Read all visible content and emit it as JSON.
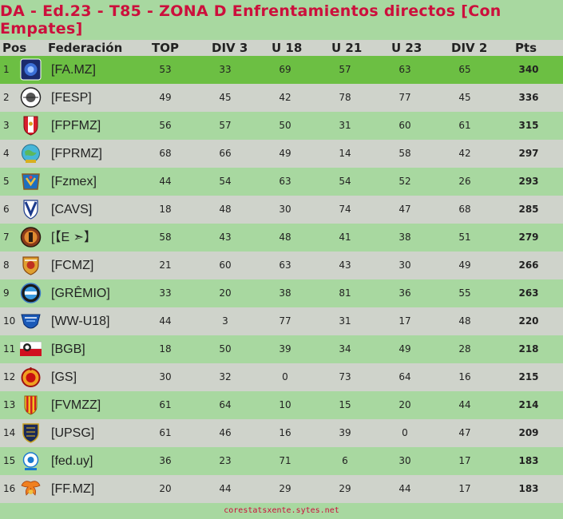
{
  "title": "DA - Ed.23 - T85 - ZONA D Enfrentamientos directos [Con Empates]",
  "headers": {
    "pos": "Pos",
    "federacion": "Federación",
    "top": "TOP",
    "div3": "DIV 3",
    "u18": "U 18",
    "u21": "U 21",
    "u23": "U 23",
    "div2": "DIV 2",
    "pts": "Pts"
  },
  "rows": [
    {
      "pos": "1",
      "fed": "[FA.MZ]",
      "top": "53",
      "div3": "33",
      "u18": "69",
      "u21": "57",
      "u23": "63",
      "div2": "65",
      "pts": "340",
      "logo": "fa-mz-crest"
    },
    {
      "pos": "2",
      "fed": "[FESP]",
      "top": "49",
      "div3": "45",
      "u18": "42",
      "u21": "78",
      "u23": "77",
      "div2": "45",
      "pts": "336",
      "logo": "fesp-crest"
    },
    {
      "pos": "3",
      "fed": "[FPFMZ]",
      "top": "56",
      "div3": "57",
      "u18": "50",
      "u21": "31",
      "u23": "60",
      "div2": "61",
      "pts": "315",
      "logo": "fpfmz-shield"
    },
    {
      "pos": "4",
      "fed": "[FPRMZ]",
      "top": "68",
      "div3": "66",
      "u18": "49",
      "u21": "14",
      "u23": "58",
      "div2": "42",
      "pts": "297",
      "logo": "fprmz-globe"
    },
    {
      "pos": "5",
      "fed": "[Fzmex]",
      "top": "44",
      "div3": "54",
      "u18": "63",
      "u21": "54",
      "u23": "52",
      "div2": "26",
      "pts": "293",
      "logo": "fzmex-badge"
    },
    {
      "pos": "6",
      "fed": "[CAVS]",
      "top": "18",
      "div3": "48",
      "u18": "30",
      "u21": "74",
      "u23": "47",
      "div2": "68",
      "pts": "285",
      "logo": "cavs-shield"
    },
    {
      "pos": "7",
      "fed": "[【E ➣】",
      "top": "58",
      "div3": "43",
      "u18": "48",
      "u21": "41",
      "u23": "38",
      "div2": "51",
      "pts": "279",
      "logo": "e-crest"
    },
    {
      "pos": "8",
      "fed": "[FCMZ]",
      "top": "21",
      "div3": "60",
      "u18": "63",
      "u21": "43",
      "u23": "30",
      "div2": "49",
      "pts": "266",
      "logo": "fcmz-crest"
    },
    {
      "pos": "9",
      "fed": "[GRÊMIO]",
      "top": "33",
      "div3": "20",
      "u18": "38",
      "u21": "81",
      "u23": "36",
      "div2": "55",
      "pts": "263",
      "logo": "gremio-crest"
    },
    {
      "pos": "10",
      "fed": "[WW-U18]",
      "top": "44",
      "div3": "3",
      "u18": "77",
      "u21": "31",
      "u23": "17",
      "div2": "48",
      "pts": "220",
      "logo": "ww-u18-shield"
    },
    {
      "pos": "11",
      "fed": "[BGB]",
      "top": "18",
      "div3": "50",
      "u18": "39",
      "u21": "34",
      "u23": "49",
      "div2": "28",
      "pts": "218",
      "logo": "bgb-flag"
    },
    {
      "pos": "12",
      "fed": "[GS]",
      "top": "30",
      "div3": "32",
      "u18": "0",
      "u21": "73",
      "u23": "64",
      "div2": "16",
      "pts": "215",
      "logo": "gs-crest"
    },
    {
      "pos": "13",
      "fed": "[FVMZZ]",
      "top": "61",
      "div3": "64",
      "u18": "10",
      "u21": "15",
      "u23": "20",
      "div2": "44",
      "pts": "214",
      "logo": "fvmzz-crest"
    },
    {
      "pos": "14",
      "fed": "[UPSG]",
      "top": "61",
      "div3": "46",
      "u18": "16",
      "u21": "39",
      "u23": "0",
      "div2": "47",
      "pts": "209",
      "logo": "upsg-shield"
    },
    {
      "pos": "15",
      "fed": "[fed.uy]",
      "top": "36",
      "div3": "23",
      "u18": "71",
      "u21": "6",
      "u23": "30",
      "div2": "17",
      "pts": "183",
      "logo": "fed-uy-ball"
    },
    {
      "pos": "16",
      "fed": "[FF.MZ]",
      "top": "20",
      "div3": "44",
      "u18": "29",
      "u21": "29",
      "u23": "44",
      "div2": "17",
      "pts": "183",
      "logo": "ff-mz-wings"
    }
  ],
  "footer": "corestatsxente.sytes.net",
  "colors": {
    "title": "#cc0f3c",
    "bg_green": "#a8d8a0",
    "bg_grey": "#cfd3cb",
    "highlight": "#6cbf43"
  }
}
